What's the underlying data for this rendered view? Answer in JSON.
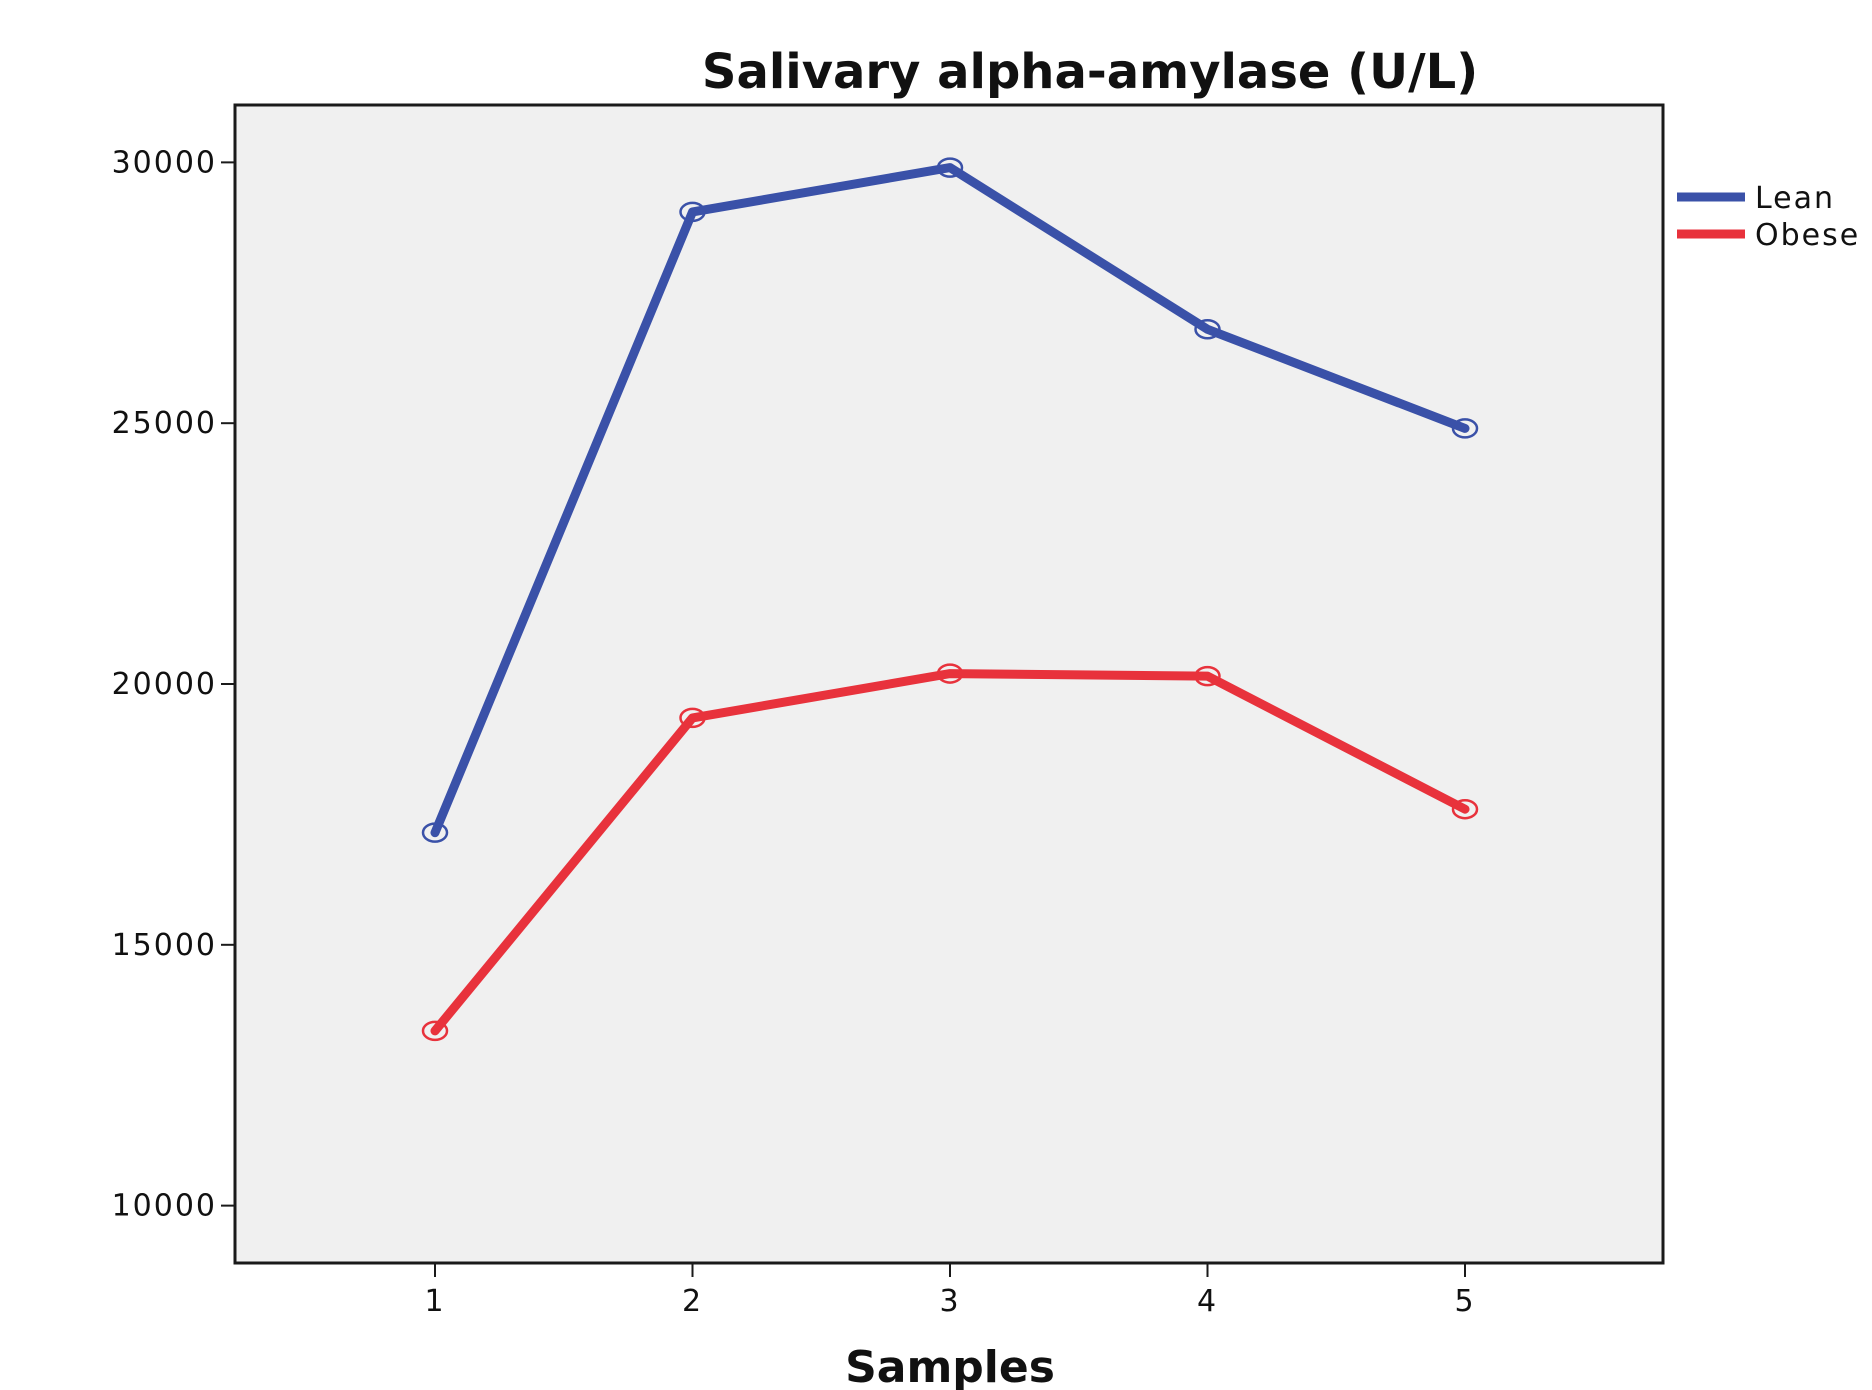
{
  "chart_data": {
    "type": "line",
    "title": "Salivary alpha-amylase (U/L)",
    "xlabel": "Samples",
    "ylabel": "",
    "categories": [
      1,
      2,
      3,
      4,
      5
    ],
    "x_tick_labels": [
      "1",
      "2",
      "3",
      "4",
      "5"
    ],
    "ylim": [
      8900,
      31100
    ],
    "y_ticks": [
      10000,
      15000,
      20000,
      25000,
      30000
    ],
    "y_tick_labels": [
      "10000",
      "15000",
      "20000",
      "25000",
      "30000"
    ],
    "grid": false,
    "legend_position": "right",
    "plot_background": "#f0f0f0",
    "markers": "open-circle",
    "series": [
      {
        "name": "Lean",
        "color": "#3a51a8",
        "values": [
          17150,
          29050,
          29900,
          26800,
          24900
        ]
      },
      {
        "name": "Obese",
        "color": "#e8323c",
        "values": [
          13350,
          19350,
          20200,
          20150,
          17600
        ]
      }
    ]
  }
}
